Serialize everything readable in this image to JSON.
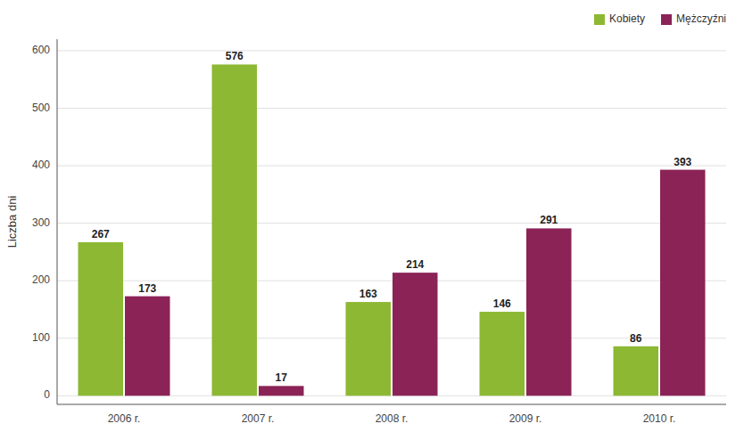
{
  "chart_data": {
    "type": "bar",
    "ylabel": "Liczba dni",
    "categories": [
      "2006 r.",
      "2007 r.",
      "2008 r.",
      "2009 r.",
      "2010 r."
    ],
    "series": [
      {
        "name": "Kobiety",
        "color": "#8DB833",
        "values": [
          267,
          576,
          163,
          146,
          86
        ]
      },
      {
        "name": "Mężczyźni",
        "color": "#8B2357",
        "values": [
          173,
          17,
          214,
          291,
          393
        ]
      }
    ],
    "ylim": [
      -15,
      620
    ],
    "yticks": [
      0,
      100,
      200,
      300,
      400,
      500,
      600
    ],
    "grid": true,
    "legend": "upper right",
    "data_labels": true
  }
}
